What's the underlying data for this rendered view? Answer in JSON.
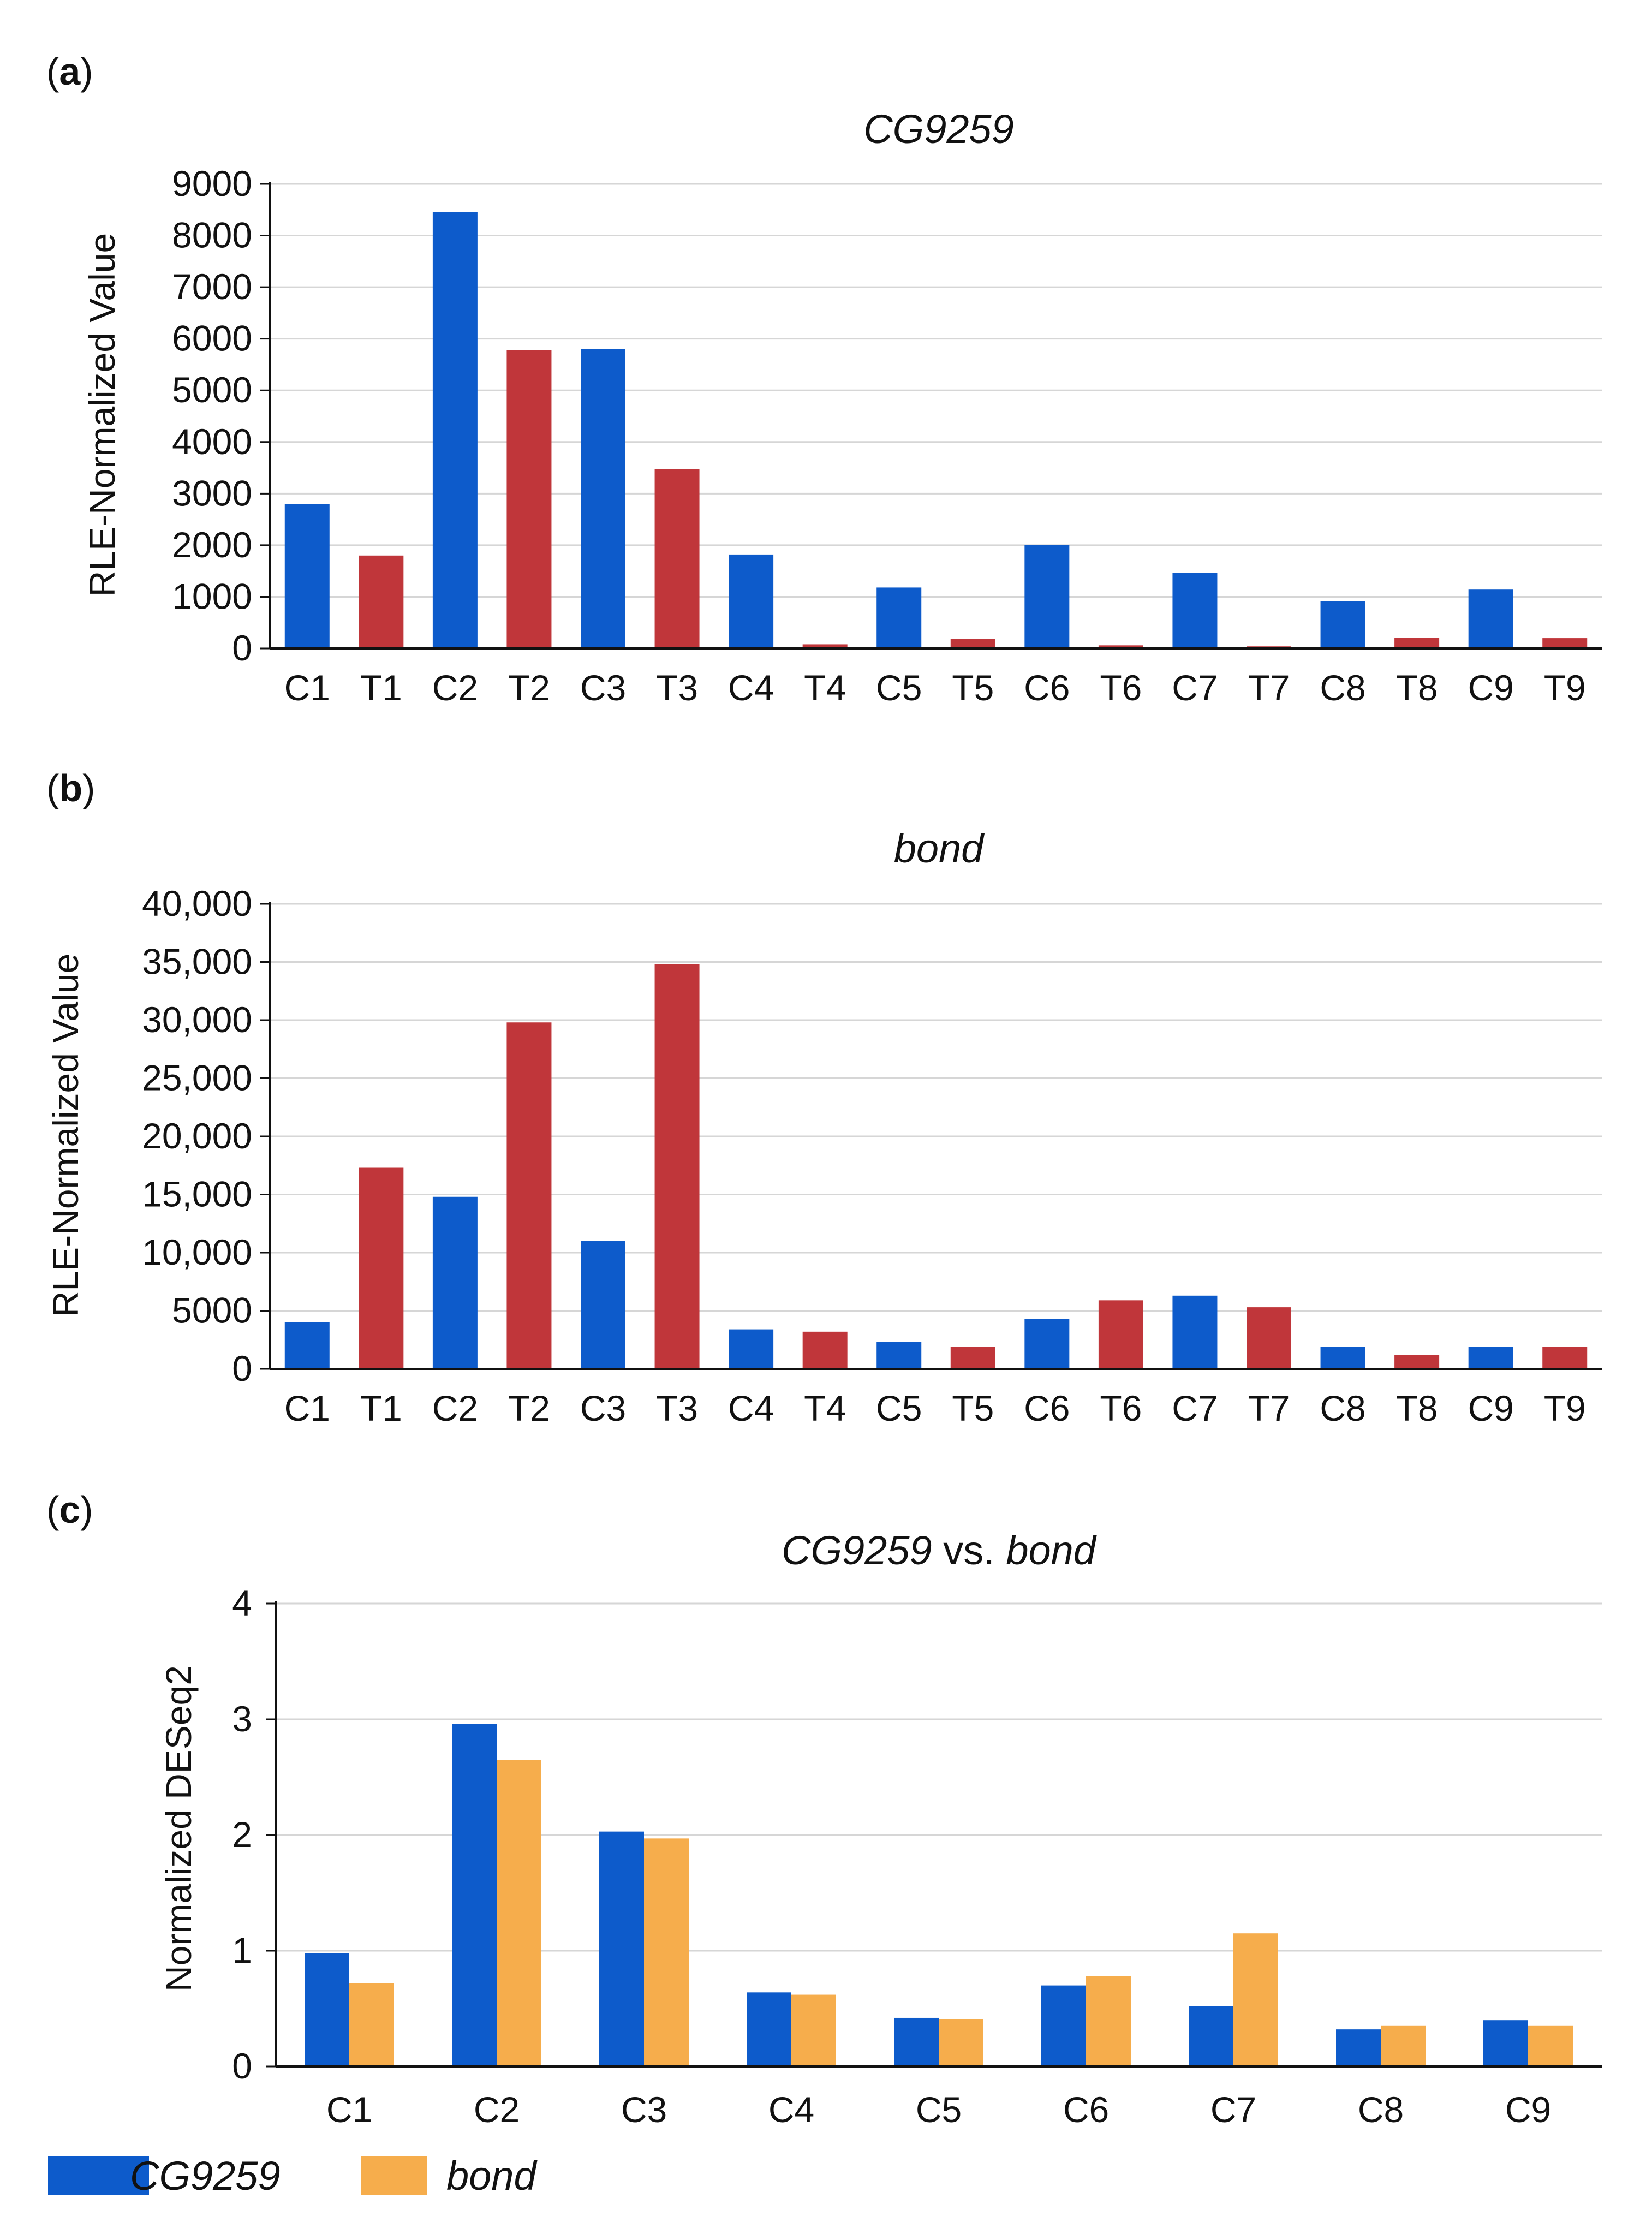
{
  "colors": {
    "control": "#0D5BCB",
    "treated": "#C0363A",
    "cg9259": "#0D5BCB",
    "bond": "#F6AD4C",
    "grid": "#D6D6D6",
    "axis": "#111111"
  },
  "chart_data": [
    {
      "panel": "(a)",
      "panel_letter": "a",
      "type": "bar",
      "title": "CG9259",
      "xlabel": "",
      "ylabel": "RLE-Normalized Value",
      "ylim": [
        0,
        9000
      ],
      "yticks": [
        0,
        1000,
        2000,
        3000,
        4000,
        5000,
        6000,
        7000,
        8000,
        9000
      ],
      "ytick_labels": [
        "0",
        "1000",
        "2000",
        "3000",
        "4000",
        "5000",
        "6000",
        "7000",
        "8000",
        "9000"
      ],
      "grid": true,
      "categories": [
        "C1",
        "T1",
        "C2",
        "T2",
        "C3",
        "T3",
        "C4",
        "T4",
        "C5",
        "T5",
        "C6",
        "T6",
        "C7",
        "T7",
        "C8",
        "T8",
        "C9",
        "T9"
      ],
      "values": [
        2800,
        1800,
        8450,
        5780,
        5800,
        3470,
        1820,
        80,
        1180,
        180,
        2000,
        60,
        1460,
        40,
        920,
        210,
        1140,
        200
      ],
      "bar_colors": [
        "control",
        "treated",
        "control",
        "treated",
        "control",
        "treated",
        "control",
        "treated",
        "control",
        "treated",
        "control",
        "treated",
        "control",
        "treated",
        "control",
        "treated",
        "control",
        "treated"
      ]
    },
    {
      "panel": "(b)",
      "panel_letter": "b",
      "type": "bar",
      "title": "bond",
      "xlabel": "",
      "ylabel": "RLE-Normalized Value",
      "ylim": [
        0,
        40000
      ],
      "yticks": [
        0,
        5000,
        10000,
        15000,
        20000,
        25000,
        30000,
        35000,
        40000
      ],
      "ytick_labels": [
        "0",
        "5000",
        "10,000",
        "15,000",
        "20,000",
        "25,000",
        "30,000",
        "35,000",
        "40,000"
      ],
      "grid": true,
      "categories": [
        "C1",
        "T1",
        "C2",
        "T2",
        "C3",
        "T3",
        "C4",
        "T4",
        "C5",
        "T5",
        "C6",
        "T6",
        "C7",
        "T7",
        "C8",
        "T8",
        "C9",
        "T9"
      ],
      "values": [
        4000,
        17300,
        14800,
        29800,
        11000,
        34800,
        3400,
        3200,
        2300,
        1900,
        4300,
        5900,
        6300,
        5300,
        1900,
        1200,
        1900,
        1900
      ],
      "bar_colors": [
        "control",
        "treated",
        "control",
        "treated",
        "control",
        "treated",
        "control",
        "treated",
        "control",
        "treated",
        "control",
        "treated",
        "control",
        "treated",
        "control",
        "treated",
        "control",
        "treated"
      ]
    },
    {
      "panel": "(c)",
      "panel_letter": "c",
      "type": "bar",
      "title_parts": [
        "CG9259",
        " vs. ",
        "bond"
      ],
      "xlabel": "",
      "ylabel": "Normalized DESeq2",
      "ylim": [
        0,
        4
      ],
      "yticks": [
        0,
        1,
        2,
        3,
        4
      ],
      "ytick_labels": [
        "0",
        "1",
        "2",
        "3",
        "4"
      ],
      "grid": true,
      "categories": [
        "C1",
        "C2",
        "C3",
        "C4",
        "C5",
        "C6",
        "C7",
        "C8",
        "C9"
      ],
      "series": [
        {
          "name": "CG9259",
          "color_key": "cg9259",
          "values": [
            0.98,
            2.96,
            2.03,
            0.64,
            0.42,
            0.7,
            0.52,
            0.32,
            0.4
          ]
        },
        {
          "name": "bond",
          "color_key": "bond",
          "values": [
            0.72,
            2.65,
            1.97,
            0.62,
            0.41,
            0.78,
            1.15,
            0.35,
            0.35
          ]
        }
      ],
      "legend": {
        "position": "bottom-left",
        "entries": [
          "CG9259",
          "bond"
        ]
      }
    }
  ]
}
